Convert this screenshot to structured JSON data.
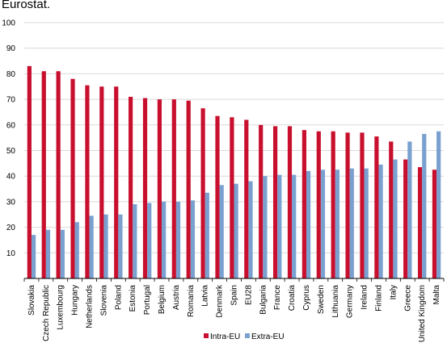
{
  "caption": "Eurostat.",
  "chart_data": {
    "type": "bar",
    "title": "",
    "xlabel": "",
    "ylabel": "",
    "ylim": [
      0,
      100
    ],
    "yticks": [
      10,
      20,
      30,
      40,
      50,
      60,
      70,
      80,
      90,
      100
    ],
    "grid": true,
    "legend_position": "bottom",
    "categories": [
      "Slovakia",
      "Czech Republic",
      "Luxembourg",
      "Hungary",
      "Netherlands",
      "Slovenia",
      "Poland",
      "Estonia",
      "Portugal",
      "Belgium",
      "Austria",
      "Romania",
      "Latvia",
      "Denmark",
      "Spain",
      "EU28",
      "Bulgaria",
      "France",
      "Croatia",
      "Cyprus",
      "Sweden",
      "Lithuania",
      "Germany",
      "Ireland",
      "Finland",
      "Italy",
      "Greece",
      "United Kingdom",
      "Malta"
    ],
    "series": [
      {
        "name": "Intra-EU",
        "color": "#c8102e",
        "values": [
          83,
          81,
          81,
          78,
          75.5,
          75,
          75,
          71,
          70.5,
          70,
          70,
          69.5,
          66.5,
          63.5,
          63,
          62,
          60,
          59.5,
          59.5,
          58,
          57.5,
          57.5,
          57,
          57,
          55.5,
          53.5,
          46.5,
          43.5,
          42.5
        ]
      },
      {
        "name": "Extra-EU",
        "color": "#7aa0d0",
        "values": [
          17,
          19,
          19,
          22,
          24.5,
          25,
          25,
          29,
          29.5,
          30,
          30,
          30.5,
          33.5,
          36.5,
          37,
          38,
          40,
          40.5,
          40.5,
          42,
          42.5,
          42.5,
          43,
          43,
          44.5,
          46.5,
          53.5,
          56.5,
          57.5
        ]
      }
    ]
  }
}
